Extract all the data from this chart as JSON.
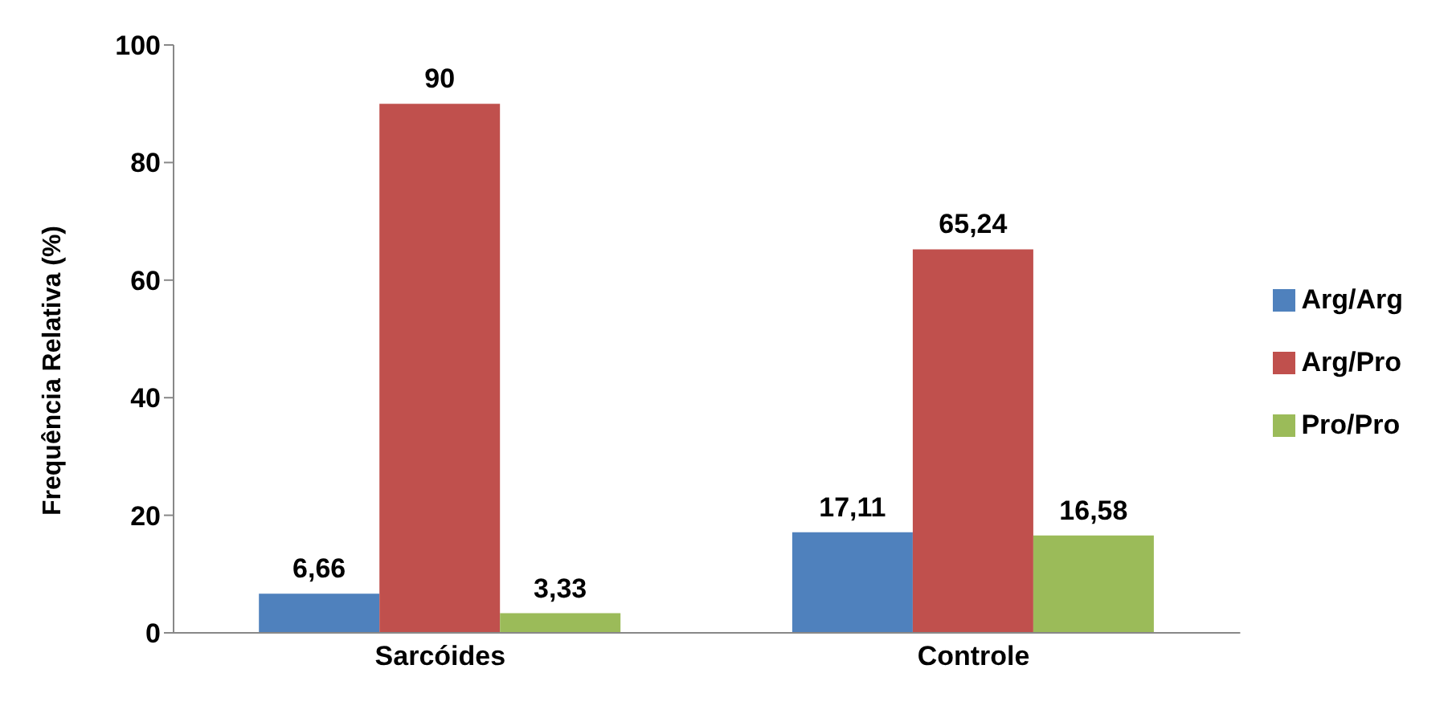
{
  "chart_data": {
    "type": "bar",
    "ylabel": "Frequência Relativa (%)",
    "categories": [
      "Sarcóides",
      "Controle"
    ],
    "series": [
      {
        "name": "Arg/Arg",
        "color": "#4f81bd",
        "values": [
          6.66,
          17.11
        ],
        "value_labels": [
          "6,66",
          "17,11"
        ]
      },
      {
        "name": "Arg/Pro",
        "color": "#c0504d",
        "values": [
          90,
          65.24
        ],
        "value_labels": [
          "90",
          "65,24"
        ]
      },
      {
        "name": "Pro/Pro",
        "color": "#9bbb59",
        "values": [
          3.33,
          16.58
        ],
        "value_labels": [
          "3,33",
          "16,58"
        ]
      }
    ],
    "ylim": [
      0,
      100
    ],
    "yticks": [
      0,
      20,
      40,
      60,
      80,
      100
    ],
    "grid": false,
    "legend": "right"
  }
}
